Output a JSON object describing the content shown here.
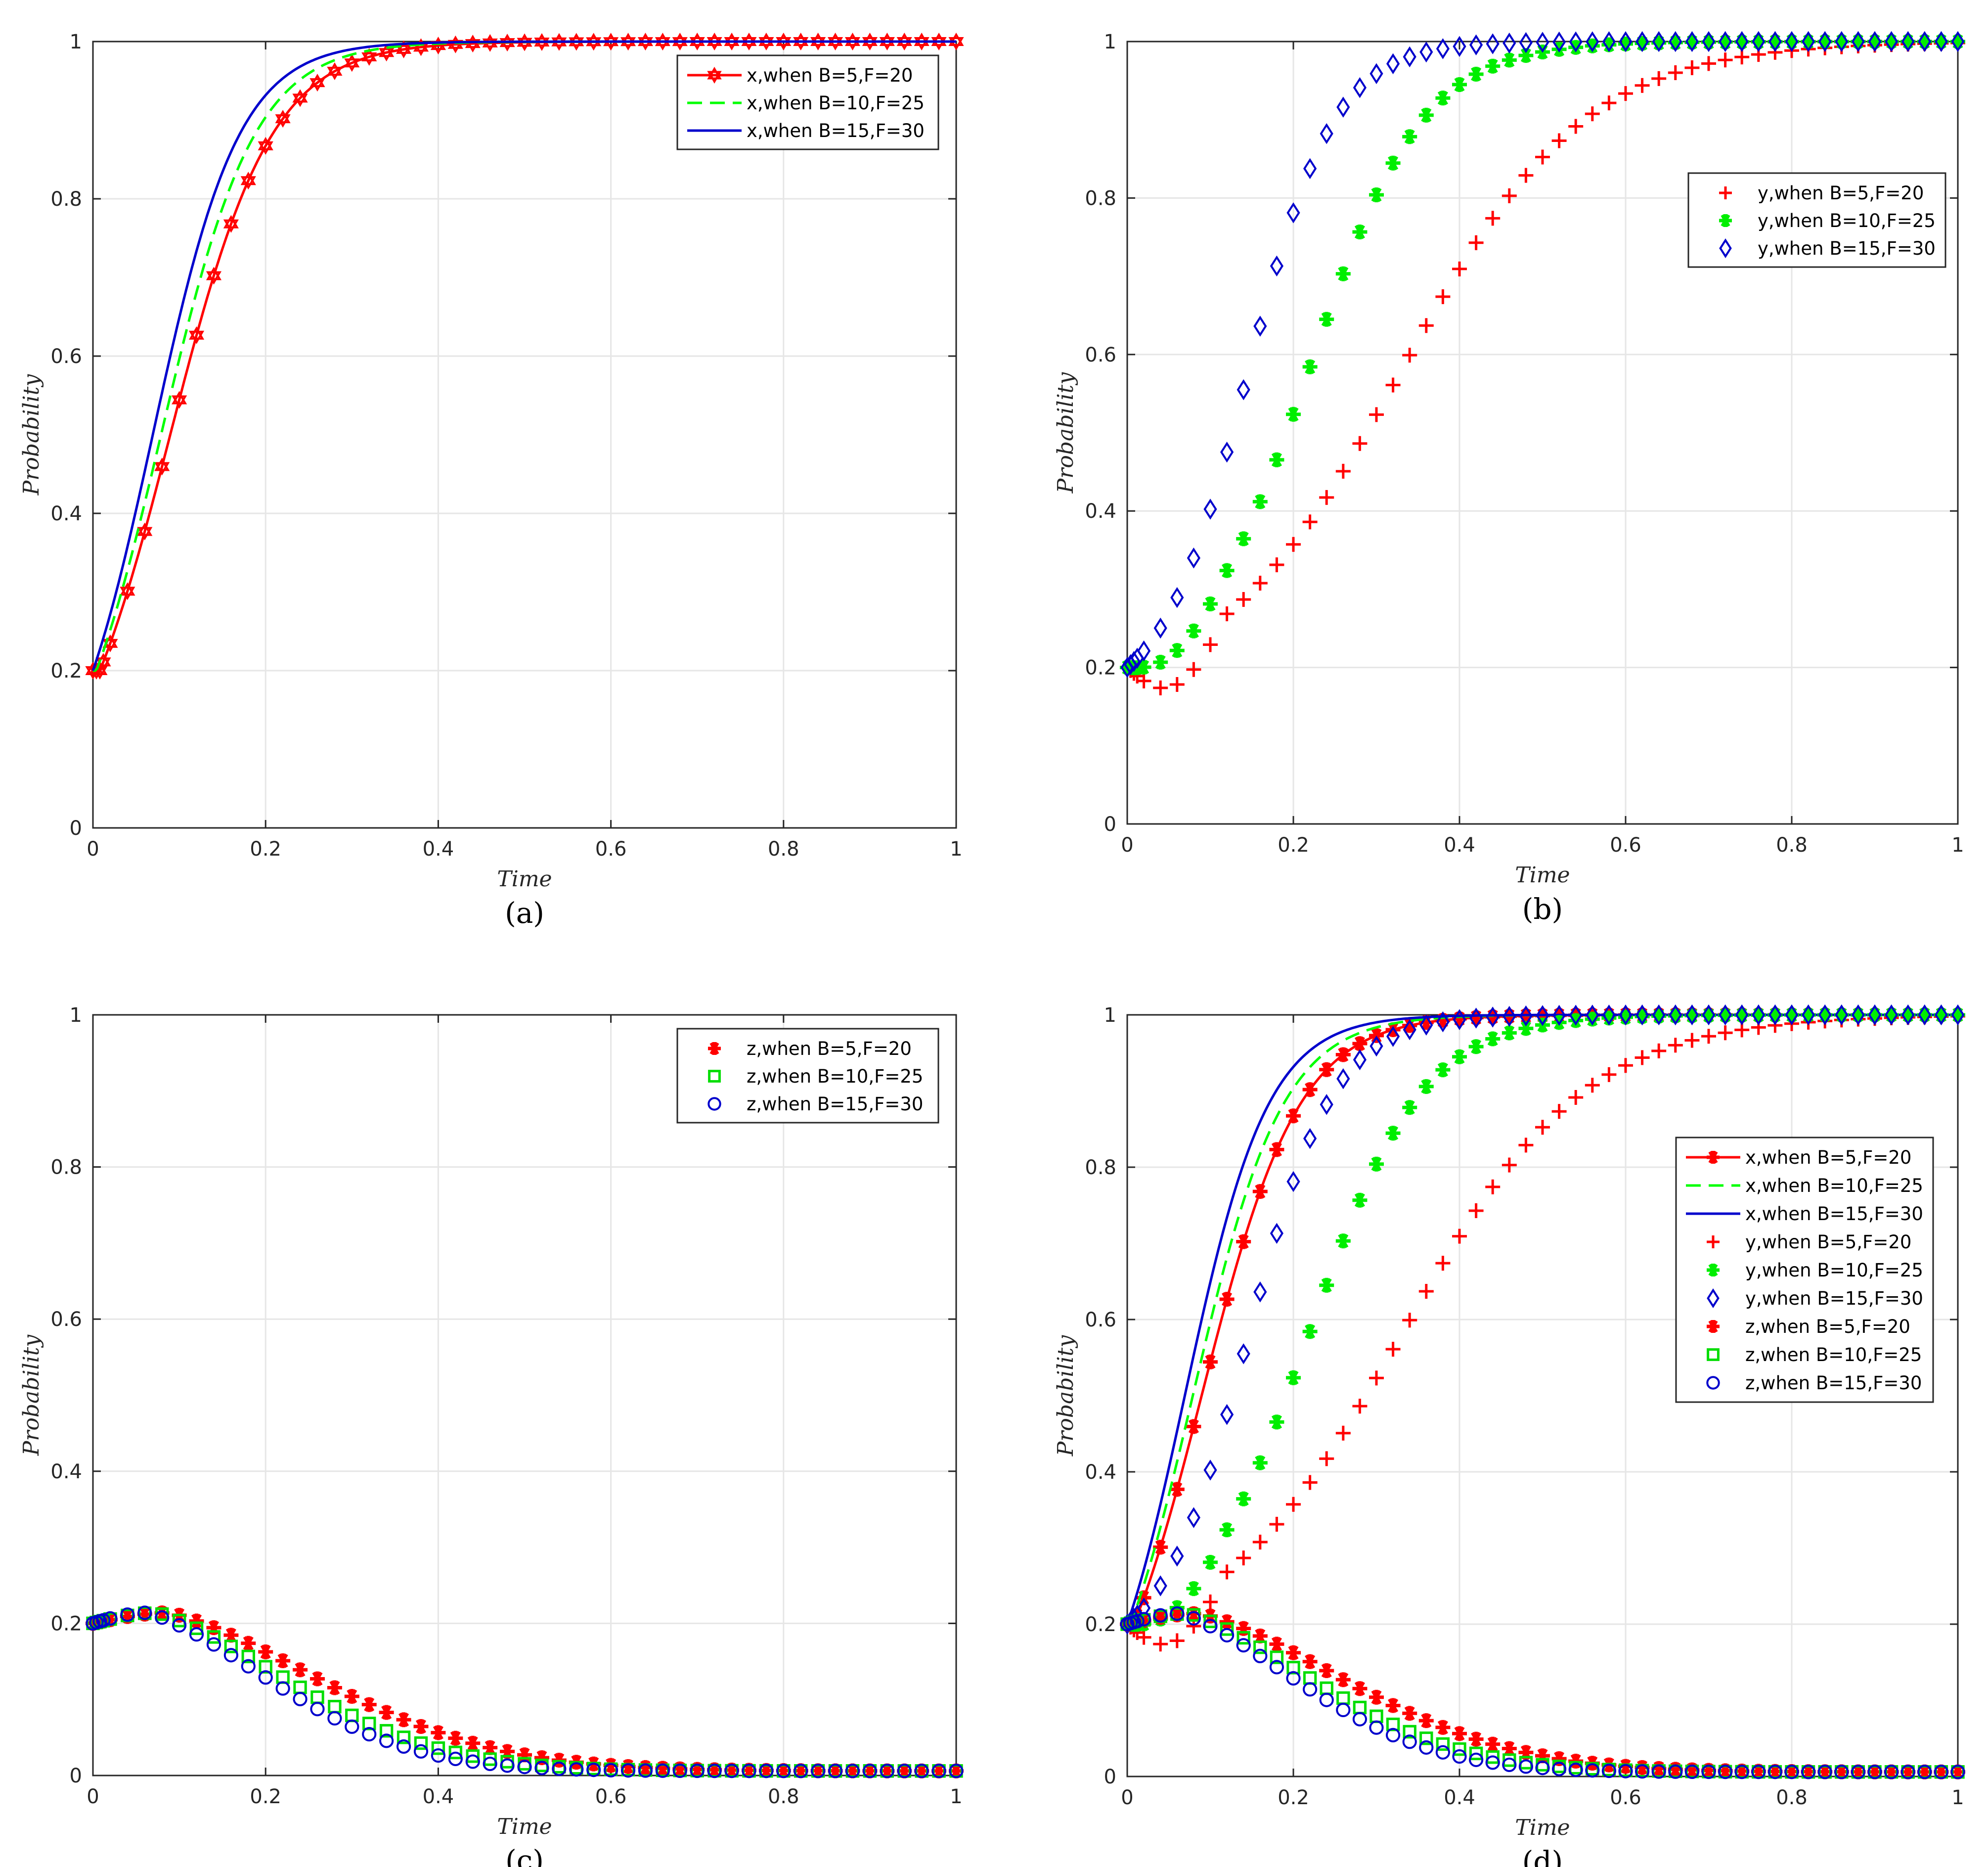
{
  "figure": {
    "panels": [
      "a",
      "b",
      "c",
      "d"
    ]
  },
  "chart_data": [
    {
      "id": "a",
      "type": "line",
      "caption": "(a)",
      "xlabel": "Time",
      "ylabel": "Probability",
      "xlim": [
        0,
        1
      ],
      "ylim": [
        0,
        1
      ],
      "xticks": [
        "0",
        "0.2",
        "0.4",
        "0.6",
        "0.8",
        "1"
      ],
      "yticks": [
        "0",
        "0.2",
        "0.4",
        "0.6",
        "0.8",
        "1"
      ],
      "grid": true,
      "legend_position": "top-right",
      "series": [
        {
          "name": "x,when B=5,F=20",
          "color": "#ff0000",
          "line": "solid",
          "marker": "hexagram",
          "kind": "x",
          "r": 17,
          "delay": 0.008
        },
        {
          "name": "x,when B=10,F=25",
          "color": "#00ff00",
          "line": "dashed",
          "marker": "none",
          "kind": "x",
          "r": 18.5,
          "delay": 0.004
        },
        {
          "name": "x,when B=15,F=30",
          "color": "#0000cc",
          "line": "solid",
          "marker": "none",
          "kind": "x",
          "r": 20,
          "delay": 0
        }
      ]
    },
    {
      "id": "b",
      "type": "scatter",
      "caption": "(b)",
      "xlabel": "Time",
      "ylabel": "Probability",
      "xlim": [
        0,
        1
      ],
      "ylim": [
        0,
        1
      ],
      "xticks": [
        "0",
        "0.2",
        "0.4",
        "0.6",
        "0.8",
        "1"
      ],
      "yticks": [
        "0",
        "0.2",
        "0.4",
        "0.6",
        "0.8",
        "1"
      ],
      "grid": true,
      "legend_position": "top-right",
      "series": [
        {
          "name": "y,when B=5,F=20",
          "color": "#ff0000",
          "line": "none",
          "marker": "plus",
          "kind": "y",
          "t0": 0.33,
          "w": 0.11,
          "dip": 0.05
        },
        {
          "name": "y,when B=10,F=25",
          "color": "#00ee00",
          "line": "none",
          "marker": "asterisk",
          "kind": "y",
          "t0": 0.22,
          "w": 0.068,
          "dip": 0.02
        },
        {
          "name": "y,when B=15,F=30",
          "color": "#0000cc",
          "line": "none",
          "marker": "diamond",
          "kind": "y",
          "t0": 0.145,
          "w": 0.052,
          "dip": 0
        }
      ]
    },
    {
      "id": "c",
      "type": "scatter",
      "caption": "(c)",
      "xlabel": "Time",
      "ylabel": "Probability",
      "xlim": [
        0,
        1
      ],
      "ylim": [
        0,
        1
      ],
      "xticks": [
        "0",
        "0.2",
        "0.4",
        "0.6",
        "0.8",
        "1"
      ],
      "yticks": [
        "0",
        "0.2",
        "0.4",
        "0.6",
        "0.8",
        "1"
      ],
      "grid": true,
      "legend_position": "top-right",
      "series": [
        {
          "name": "z,when B=5,F=20",
          "color": "#ff0000",
          "line": "none",
          "marker": "asterisk",
          "kind": "z",
          "tp": 0.09,
          "s": 0.235
        },
        {
          "name": "z,when B=10,F=25",
          "color": "#00dd00",
          "line": "none",
          "marker": "square",
          "kind": "z",
          "tp": 0.075,
          "s": 0.205
        },
        {
          "name": "z,when B=15,F=30",
          "color": "#0000cc",
          "line": "none",
          "marker": "circle",
          "kind": "z",
          "tp": 0.065,
          "s": 0.19
        }
      ]
    },
    {
      "id": "d",
      "type": "line",
      "caption": "(d)",
      "xlabel": "Time",
      "ylabel": "Probability",
      "xlim": [
        0,
        1
      ],
      "ylim": [
        0,
        1
      ],
      "xticks": [
        "0",
        "0.2",
        "0.4",
        "0.6",
        "0.8",
        "1"
      ],
      "yticks": [
        "0",
        "0.2",
        "0.4",
        "0.6",
        "0.8",
        "1"
      ],
      "grid": true,
      "legend_position": "right",
      "series": [
        {
          "name": "x,when B=5,F=20",
          "color": "#ff0000",
          "line": "solid",
          "marker": "asterisk",
          "kind": "x",
          "r": 17,
          "delay": 0.008
        },
        {
          "name": "x,when B=10,F=25",
          "color": "#00ff00",
          "line": "dashed",
          "marker": "none",
          "kind": "x",
          "r": 18.5,
          "delay": 0.004
        },
        {
          "name": "x,when B=15,F=30",
          "color": "#0000cc",
          "line": "solid",
          "marker": "none",
          "kind": "x",
          "r": 20,
          "delay": 0
        },
        {
          "name": "y,when B=5,F=20",
          "color": "#ff0000",
          "line": "none",
          "marker": "plus",
          "kind": "y",
          "t0": 0.33,
          "w": 0.11,
          "dip": 0.05
        },
        {
          "name": "y,when B=10,F=25",
          "color": "#00ee00",
          "line": "none",
          "marker": "asterisk",
          "kind": "y",
          "t0": 0.22,
          "w": 0.068,
          "dip": 0.02
        },
        {
          "name": "y,when B=15,F=30",
          "color": "#0000cc",
          "line": "none",
          "marker": "diamond",
          "kind": "y",
          "t0": 0.145,
          "w": 0.052,
          "dip": 0
        },
        {
          "name": "z,when B=5,F=20",
          "color": "#ff0000",
          "line": "none",
          "marker": "asterisk",
          "kind": "z",
          "tp": 0.09,
          "s": 0.235
        },
        {
          "name": "z,when B=10,F=25",
          "color": "#00dd00",
          "line": "none",
          "marker": "square",
          "kind": "z",
          "tp": 0.075,
          "s": 0.205
        },
        {
          "name": "z,when B=15,F=30",
          "color": "#0000cc",
          "line": "none",
          "marker": "circle",
          "kind": "z",
          "tp": 0.065,
          "s": 0.19
        }
      ]
    }
  ]
}
